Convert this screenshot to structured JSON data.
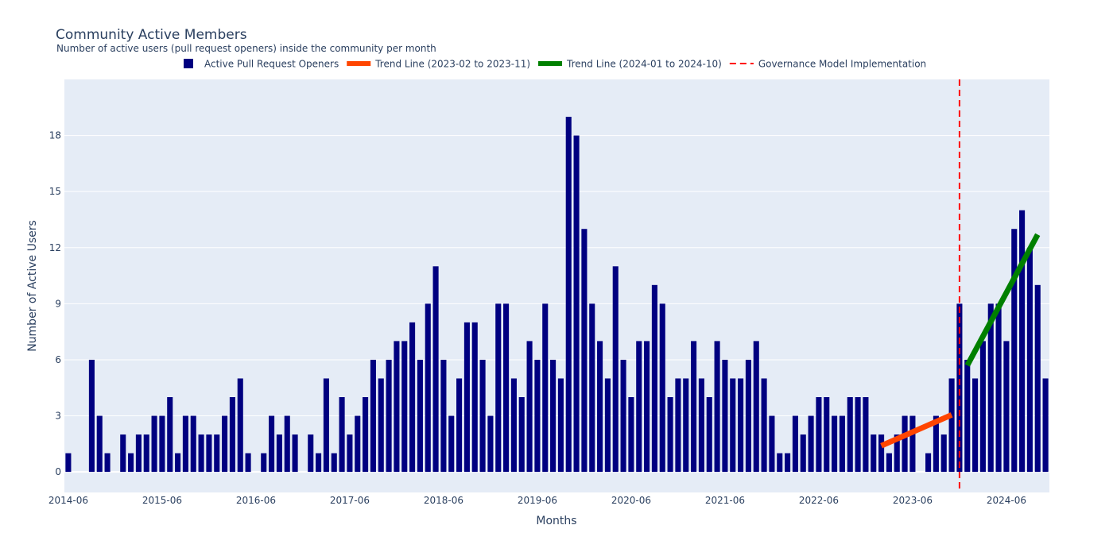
{
  "chart_data": {
    "type": "bar",
    "title": "Community Active Members",
    "subtitle": "Number of active users (pull request openers) inside the community per month",
    "xlabel": "Months",
    "ylabel": "Number of Active Users",
    "x_start": "2014-06",
    "x_ticks": [
      "2014-06",
      "2015-06",
      "2016-06",
      "2017-06",
      "2018-06",
      "2019-06",
      "2020-06",
      "2021-06",
      "2022-06",
      "2023-06",
      "2024-06"
    ],
    "y_ticks": [
      0,
      3,
      6,
      9,
      12,
      15,
      18
    ],
    "ylim": [
      -1.1,
      21
    ],
    "grid": true,
    "legend_position": "top",
    "series": [
      {
        "name": "Active Pull Request Openers",
        "color": "#000080",
        "values": [
          1,
          0,
          0,
          6,
          3,
          1,
          0,
          2,
          1,
          2,
          2,
          3,
          3,
          4,
          1,
          3,
          3,
          2,
          2,
          2,
          3,
          4,
          5,
          1,
          0,
          1,
          3,
          2,
          3,
          2,
          0,
          2,
          1,
          5,
          1,
          4,
          2,
          3,
          4,
          6,
          5,
          6,
          7,
          7,
          8,
          6,
          9,
          11,
          6,
          3,
          5,
          8,
          8,
          6,
          3,
          9,
          9,
          5,
          4,
          7,
          6,
          9,
          6,
          5,
          19,
          18,
          13,
          9,
          7,
          5,
          11,
          6,
          4,
          7,
          7,
          10,
          9,
          4,
          5,
          5,
          7,
          5,
          4,
          7,
          6,
          5,
          5,
          6,
          7,
          5,
          3,
          1,
          1,
          3,
          2,
          3,
          4,
          4,
          3,
          3,
          4,
          4,
          4,
          2,
          2,
          1,
          2,
          3,
          3,
          0,
          1,
          3,
          2,
          5,
          9,
          6,
          5,
          7,
          9,
          9,
          7,
          13,
          14,
          12,
          10,
          5
        ]
      },
      {
        "name": "Trend Line (2023-02 to 2023-11)",
        "color": "#ff4500",
        "x": [
          "2023-02",
          "2023-11"
        ],
        "y": [
          1.4,
          3.05
        ]
      },
      {
        "name": "Trend Line (2024-01 to 2024-10)",
        "color": "#008000",
        "x": [
          "2024-01",
          "2024-10"
        ],
        "y": [
          5.7,
          12.7
        ]
      }
    ],
    "annotations": [
      {
        "name": "Governance Model Implementation",
        "type": "vline",
        "x": "2023-12",
        "color": "#ff0000",
        "dash": "dashed"
      }
    ]
  }
}
